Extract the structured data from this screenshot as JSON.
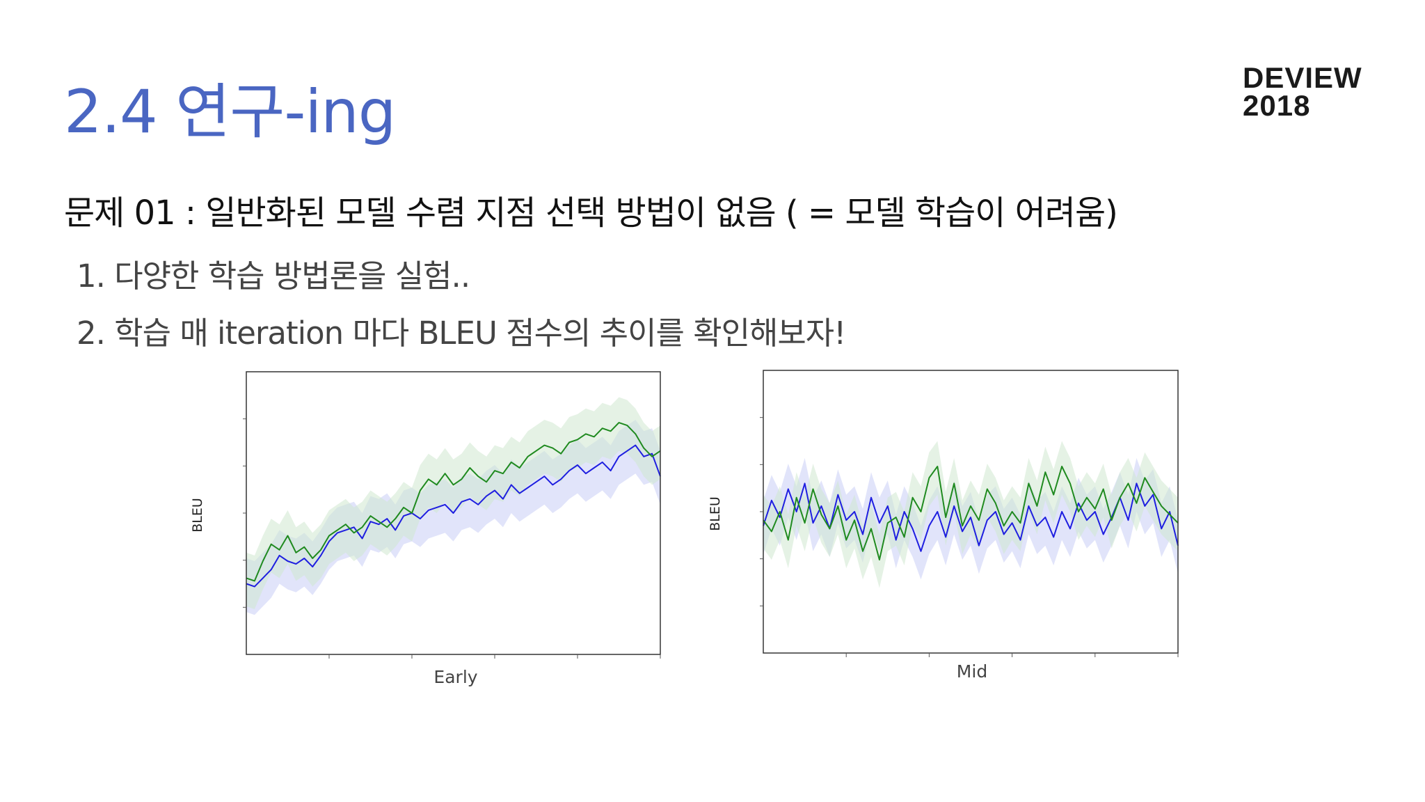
{
  "slide": {
    "title": "2.4 연구-ing",
    "brand_line1": "DEVIEW",
    "brand_line2": "2018",
    "problem": "문제 01 : 일반화된 모델 수렴 지점 선택 방법이 없음 ( = 모델 학습이 어려움)",
    "steps": [
      "1. 다양한 학습 방법론을 실험..",
      "2. 학습 매 iteration 마다 BLEU 점수의 추이를 확인해보자!"
    ]
  },
  "colors": {
    "title": "#4a66c2",
    "series_blue": "#1e1ee0",
    "series_green": "#1f8a1f",
    "band_blue": "#c8cdf5",
    "band_green": "#cfe8cf"
  },
  "chart_data": [
    {
      "type": "line",
      "xlabel": "Early",
      "ylabel": "BLEU",
      "ylim": [
        0,
        1
      ],
      "grid": false,
      "x": [
        0,
        0.02,
        0.04,
        0.06,
        0.08,
        0.1,
        0.12,
        0.14,
        0.16,
        0.18,
        0.2,
        0.22,
        0.24,
        0.26,
        0.28,
        0.3,
        0.32,
        0.34,
        0.36,
        0.38,
        0.4,
        0.42,
        0.44,
        0.46,
        0.48,
        0.5,
        0.52,
        0.54,
        0.56,
        0.58,
        0.6,
        0.62,
        0.64,
        0.66,
        0.68,
        0.7,
        0.72,
        0.74,
        0.76,
        0.78,
        0.8,
        0.82,
        0.84,
        0.86,
        0.88,
        0.9,
        0.92,
        0.94,
        0.96,
        0.98,
        1.0
      ],
      "series": [
        {
          "color": "blue",
          "values": [
            0.25,
            0.24,
            0.27,
            0.3,
            0.35,
            0.33,
            0.32,
            0.34,
            0.31,
            0.35,
            0.4,
            0.43,
            0.44,
            0.45,
            0.41,
            0.47,
            0.46,
            0.48,
            0.44,
            0.49,
            0.5,
            0.48,
            0.51,
            0.52,
            0.53,
            0.5,
            0.54,
            0.55,
            0.53,
            0.56,
            0.58,
            0.55,
            0.6,
            0.57,
            0.59,
            0.61,
            0.63,
            0.6,
            0.62,
            0.65,
            0.67,
            0.64,
            0.66,
            0.68,
            0.65,
            0.7,
            0.72,
            0.74,
            0.7,
            0.71,
            0.63
          ]
        },
        {
          "color": "green",
          "values": [
            0.27,
            0.26,
            0.33,
            0.39,
            0.37,
            0.42,
            0.36,
            0.38,
            0.34,
            0.37,
            0.42,
            0.44,
            0.46,
            0.43,
            0.45,
            0.49,
            0.47,
            0.45,
            0.48,
            0.52,
            0.5,
            0.58,
            0.62,
            0.6,
            0.64,
            0.6,
            0.62,
            0.66,
            0.63,
            0.61,
            0.65,
            0.64,
            0.68,
            0.66,
            0.7,
            0.72,
            0.74,
            0.73,
            0.71,
            0.75,
            0.76,
            0.78,
            0.77,
            0.8,
            0.79,
            0.82,
            0.81,
            0.78,
            0.73,
            0.7,
            0.72
          ]
        }
      ]
    },
    {
      "type": "line",
      "xlabel": "Mid",
      "ylabel": "BLEU",
      "ylim": [
        0,
        1
      ],
      "grid": false,
      "x": [
        0,
        0.02,
        0.04,
        0.06,
        0.08,
        0.1,
        0.12,
        0.14,
        0.16,
        0.18,
        0.2,
        0.22,
        0.24,
        0.26,
        0.28,
        0.3,
        0.32,
        0.34,
        0.36,
        0.38,
        0.4,
        0.42,
        0.44,
        0.46,
        0.48,
        0.5,
        0.52,
        0.54,
        0.56,
        0.58,
        0.6,
        0.62,
        0.64,
        0.66,
        0.68,
        0.7,
        0.72,
        0.74,
        0.76,
        0.78,
        0.8,
        0.82,
        0.84,
        0.86,
        0.88,
        0.9,
        0.92,
        0.94,
        0.96,
        0.98,
        1.0
      ],
      "series": [
        {
          "color": "blue",
          "values": [
            0.45,
            0.54,
            0.48,
            0.58,
            0.5,
            0.6,
            0.46,
            0.52,
            0.44,
            0.56,
            0.47,
            0.5,
            0.42,
            0.55,
            0.46,
            0.52,
            0.4,
            0.5,
            0.44,
            0.36,
            0.45,
            0.5,
            0.41,
            0.52,
            0.43,
            0.48,
            0.38,
            0.47,
            0.5,
            0.42,
            0.46,
            0.4,
            0.52,
            0.45,
            0.48,
            0.41,
            0.5,
            0.44,
            0.53,
            0.47,
            0.5,
            0.42,
            0.48,
            0.55,
            0.47,
            0.6,
            0.52,
            0.56,
            0.44,
            0.5,
            0.38
          ]
        },
        {
          "color": "green",
          "values": [
            0.47,
            0.43,
            0.5,
            0.4,
            0.55,
            0.46,
            0.58,
            0.49,
            0.44,
            0.52,
            0.4,
            0.47,
            0.36,
            0.44,
            0.33,
            0.46,
            0.48,
            0.41,
            0.55,
            0.5,
            0.62,
            0.66,
            0.48,
            0.6,
            0.45,
            0.52,
            0.47,
            0.58,
            0.53,
            0.45,
            0.5,
            0.46,
            0.6,
            0.52,
            0.64,
            0.56,
            0.66,
            0.6,
            0.5,
            0.55,
            0.51,
            0.58,
            0.47,
            0.55,
            0.6,
            0.53,
            0.62,
            0.57,
            0.52,
            0.49,
            0.46
          ]
        }
      ]
    }
  ]
}
